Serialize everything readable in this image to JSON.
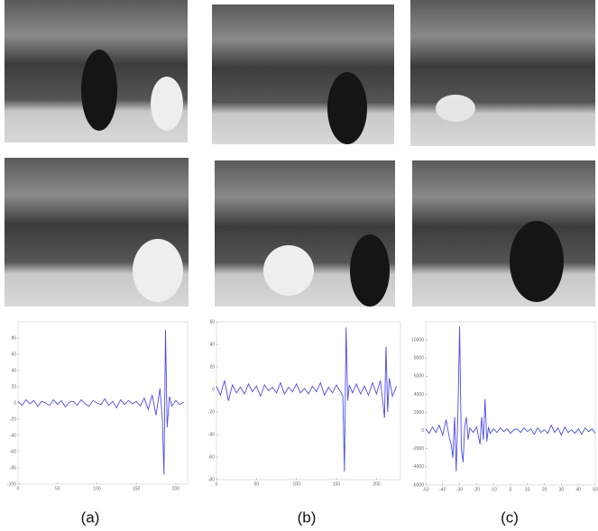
{
  "chart_data": [
    {
      "type": "line",
      "caption": "(a)",
      "color": "#4a4af2",
      "x": [
        0,
        5,
        10,
        15,
        20,
        25,
        30,
        35,
        40,
        45,
        50,
        55,
        60,
        65,
        70,
        75,
        80,
        85,
        90,
        95,
        100,
        105,
        110,
        115,
        120,
        125,
        130,
        135,
        140,
        145,
        150,
        155,
        160,
        165,
        170,
        175,
        180,
        183,
        185,
        187,
        189,
        192,
        195,
        200,
        205,
        210
      ],
      "values": [
        2,
        -3,
        4,
        -1,
        3,
        -4,
        2,
        0,
        -3,
        4,
        -2,
        3,
        -5,
        1,
        2,
        -3,
        4,
        -1,
        -4,
        3,
        0,
        -2,
        5,
        -3,
        2,
        -6,
        4,
        -2,
        3,
        -1,
        2,
        -4,
        6,
        -8,
        10,
        -15,
        18,
        -20,
        -88,
        90,
        -30,
        8,
        -4,
        3,
        -2,
        1
      ],
      "xlim": [
        0,
        215
      ],
      "xticks": [
        0,
        50,
        100,
        150,
        200
      ],
      "ylim": [
        -100,
        100
      ],
      "yticks": [
        -100,
        -80,
        -60,
        -40,
        -20,
        0,
        20,
        40,
        60,
        80
      ]
    },
    {
      "type": "line",
      "caption": "(b)",
      "color": "#4a4af2",
      "x": [
        0,
        5,
        10,
        15,
        20,
        25,
        30,
        35,
        40,
        45,
        50,
        55,
        60,
        65,
        70,
        75,
        80,
        85,
        90,
        95,
        100,
        105,
        110,
        115,
        120,
        125,
        130,
        135,
        140,
        145,
        150,
        155,
        158,
        160,
        162,
        164,
        166,
        170,
        175,
        180,
        185,
        190,
        195,
        200,
        205,
        208,
        210,
        212,
        214,
        216,
        220,
        225
      ],
      "values": [
        3,
        -5,
        8,
        -10,
        4,
        -3,
        2,
        -4,
        5,
        -2,
        3,
        -6,
        4,
        -1,
        2,
        -3,
        6,
        -4,
        2,
        -2,
        5,
        -3,
        1,
        -4,
        3,
        -2,
        6,
        -5,
        2,
        -3,
        4,
        -2,
        -6,
        -73,
        55,
        -10,
        4,
        -3,
        5,
        -4,
        3,
        -5,
        6,
        -4,
        8,
        -12,
        -25,
        38,
        -20,
        10,
        -6,
        3
      ],
      "xlim": [
        0,
        230
      ],
      "xticks": [
        0,
        50,
        100,
        150,
        200
      ],
      "ylim": [
        -80,
        60
      ],
      "yticks": [
        -80,
        -60,
        -40,
        -20,
        0,
        20,
        40,
        60
      ]
    },
    {
      "type": "line",
      "caption": "(c)",
      "color": "#4a4af2",
      "x": [
        -50,
        -48,
        -46,
        -44,
        -42,
        -40,
        -38,
        -36,
        -35,
        -34,
        -33,
        -32,
        -31,
        -30,
        -29,
        -28,
        -27,
        -26,
        -25,
        -24,
        -22,
        -20,
        -18,
        -17,
        -16,
        -15,
        -14,
        -13,
        -12,
        -10,
        -8,
        -6,
        -4,
        -2,
        0,
        2,
        4,
        6,
        8,
        10,
        12,
        14,
        16,
        18,
        20,
        22,
        24,
        26,
        28,
        30,
        32,
        34,
        36,
        38,
        40,
        42,
        44,
        46,
        48,
        50
      ],
      "values": [
        200,
        -300,
        400,
        -200,
        600,
        -500,
        1200,
        -800,
        -1500,
        -3000,
        1500,
        -4500,
        2000,
        11500,
        -2000,
        -3500,
        500,
        1500,
        -1000,
        300,
        -200,
        400,
        -1500,
        1500,
        -1000,
        3500,
        -1200,
        400,
        -300,
        200,
        -200,
        300,
        -100,
        200,
        -300,
        100,
        200,
        -200,
        300,
        -100,
        200,
        -400,
        300,
        -200,
        100,
        -300,
        600,
        -200,
        300,
        -500,
        400,
        -200,
        100,
        -300,
        200,
        -400,
        300,
        -100,
        200,
        -300
      ],
      "xlim": [
        -50,
        50
      ],
      "xticks": [
        -50,
        -40,
        -30,
        -20,
        -10,
        0,
        10,
        20,
        30,
        40,
        50
      ],
      "ylim": [
        -6000,
        12000
      ],
      "yticks": [
        -6000,
        -4000,
        -2000,
        0,
        2000,
        4000,
        6000,
        8000,
        10000
      ]
    }
  ]
}
